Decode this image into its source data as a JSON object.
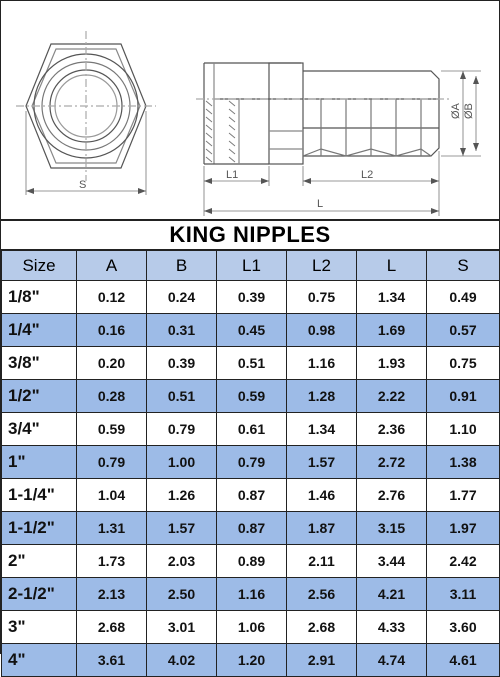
{
  "title": "KING NIPPLES",
  "diagram": {
    "labels": {
      "S": "S",
      "L1": "L1",
      "L2": "L2",
      "L": "L",
      "A": "ØA",
      "B": "ØB"
    }
  },
  "table": {
    "headers": [
      "Size",
      "A",
      "B",
      "L1",
      "L2",
      "L",
      "S"
    ],
    "rows": [
      {
        "size": "1/8\"",
        "A": "0.12",
        "B": "0.24",
        "L1": "0.39",
        "L2": "0.75",
        "L": "1.34",
        "S": "0.49"
      },
      {
        "size": "1/4\"",
        "A": "0.16",
        "B": "0.31",
        "L1": "0.45",
        "L2": "0.98",
        "L": "1.69",
        "S": "0.57"
      },
      {
        "size": "3/8\"",
        "A": "0.20",
        "B": "0.39",
        "L1": "0.51",
        "L2": "1.16",
        "L": "1.93",
        "S": "0.75"
      },
      {
        "size": "1/2\"",
        "A": "0.28",
        "B": "0.51",
        "L1": "0.59",
        "L2": "1.28",
        "L": "2.22",
        "S": "0.91"
      },
      {
        "size": "3/4\"",
        "A": "0.59",
        "B": "0.79",
        "L1": "0.61",
        "L2": "1.34",
        "L": "2.36",
        "S": "1.10"
      },
      {
        "size": "1\"",
        "A": "0.79",
        "B": "1.00",
        "L1": "0.79",
        "L2": "1.57",
        "L": "2.72",
        "S": "1.38"
      },
      {
        "size": "1-1/4\"",
        "A": "1.04",
        "B": "1.26",
        "L1": "0.87",
        "L2": "1.46",
        "L": "2.76",
        "S": "1.77"
      },
      {
        "size": "1-1/2\"",
        "A": "1.31",
        "B": "1.57",
        "L1": "0.87",
        "L2": "1.87",
        "L": "3.15",
        "S": "1.97"
      },
      {
        "size": "2\"",
        "A": "1.73",
        "B": "2.03",
        "L1": "0.89",
        "L2": "2.11",
        "L": "3.44",
        "S": "2.42"
      },
      {
        "size": "2-1/2\"",
        "A": "2.13",
        "B": "2.50",
        "L1": "1.16",
        "L2": "2.56",
        "L": "4.21",
        "S": "3.11"
      },
      {
        "size": "3\"",
        "A": "2.68",
        "B": "3.01",
        "L1": "1.06",
        "L2": "2.68",
        "L": "4.33",
        "S": "3.60"
      },
      {
        "size": "4\"",
        "A": "3.61",
        "B": "4.02",
        "L1": "1.20",
        "L2": "2.91",
        "L": "4.74",
        "S": "4.61"
      }
    ]
  },
  "colors": {
    "header_bg": "#b7cbe9",
    "stripe_bg": "#9dbbe7",
    "line": "#222222"
  }
}
